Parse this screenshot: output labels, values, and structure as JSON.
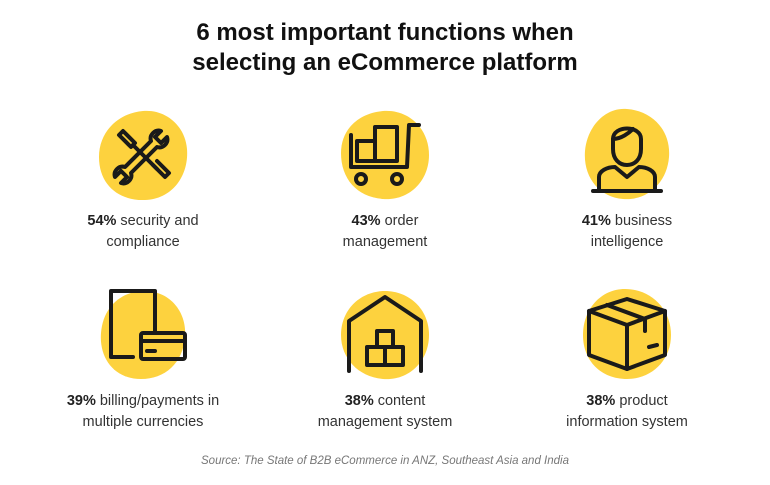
{
  "title_line1": "6 most important functions when",
  "title_line2": "selecting an eCommerce platform",
  "accent_color": "#FDD23E",
  "icon_color": "#1a1a1a",
  "items": [
    {
      "icon": "tools-icon",
      "pct": "54%",
      "line1": " security and",
      "line2": "compliance"
    },
    {
      "icon": "cart-icon",
      "pct": "43%",
      "line1": " order",
      "line2": "management"
    },
    {
      "icon": "person-icon",
      "pct": "41%",
      "line1": " business",
      "line2": "intelligence"
    },
    {
      "icon": "phone-card-icon",
      "pct": "39%",
      "line1": " billing/payments in",
      "line2": "multiple currencies"
    },
    {
      "icon": "warehouse-icon",
      "pct": "38%",
      "line1": " content",
      "line2": "management system"
    },
    {
      "icon": "box-icon",
      "pct": "38%",
      "line1": " product",
      "line2": "information system"
    }
  ],
  "source": "Source: The State of B2B eCommerce in ANZ, Southeast Asia and India"
}
